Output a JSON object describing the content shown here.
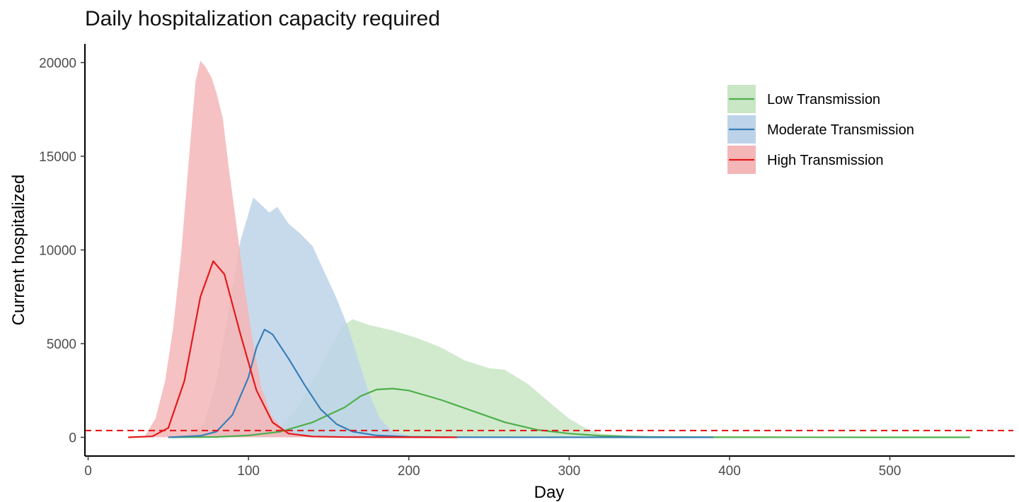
{
  "chart_data": {
    "type": "area",
    "title": "Daily hospitalization capacity required",
    "xlabel": "Day",
    "ylabel": "Current hospitalized",
    "xlim": [
      -2,
      577
    ],
    "ylim": [
      -1000,
      21000
    ],
    "x_ticks": [
      0,
      100,
      200,
      300,
      400,
      500
    ],
    "y_ticks": [
      0,
      5000,
      10000,
      15000,
      20000
    ],
    "grid": false,
    "legend_position": "top-right",
    "reference_line": {
      "y": 360,
      "style": "dashed",
      "color": "#e41a1c"
    },
    "series": [
      {
        "name": "Low Transmission",
        "color": "#4daf4a",
        "fill": "#c9e6c5",
        "line": [
          [
            52,
            0
          ],
          [
            80,
            20
          ],
          [
            100,
            100
          ],
          [
            120,
            300
          ],
          [
            140,
            800
          ],
          [
            160,
            1600
          ],
          [
            170,
            2200
          ],
          [
            180,
            2550
          ],
          [
            190,
            2600
          ],
          [
            200,
            2500
          ],
          [
            220,
            2000
          ],
          [
            240,
            1400
          ],
          [
            260,
            800
          ],
          [
            280,
            400
          ],
          [
            300,
            200
          ],
          [
            320,
            80
          ],
          [
            350,
            20
          ],
          [
            400,
            5
          ],
          [
            550,
            0
          ]
        ],
        "band_upper": [
          [
            100,
            0
          ],
          [
            110,
            200
          ],
          [
            120,
            600
          ],
          [
            130,
            1500
          ],
          [
            140,
            3000
          ],
          [
            150,
            4600
          ],
          [
            158,
            5900
          ],
          [
            165,
            6300
          ],
          [
            175,
            6000
          ],
          [
            190,
            5700
          ],
          [
            205,
            5300
          ],
          [
            220,
            4800
          ],
          [
            235,
            4100
          ],
          [
            250,
            3700
          ],
          [
            260,
            3600
          ],
          [
            275,
            2800
          ],
          [
            290,
            1700
          ],
          [
            300,
            1000
          ],
          [
            310,
            500
          ],
          [
            320,
            200
          ],
          [
            340,
            50
          ],
          [
            360,
            10
          ],
          [
            390,
            0
          ]
        ]
      },
      {
        "name": "Moderate Transmission",
        "color": "#377eb8",
        "fill": "#bdd3e9",
        "line": [
          [
            50,
            0
          ],
          [
            70,
            80
          ],
          [
            80,
            300
          ],
          [
            90,
            1200
          ],
          [
            100,
            3200
          ],
          [
            105,
            4800
          ],
          [
            110,
            5750
          ],
          [
            115,
            5500
          ],
          [
            125,
            4200
          ],
          [
            135,
            2800
          ],
          [
            145,
            1500
          ],
          [
            155,
            700
          ],
          [
            165,
            300
          ],
          [
            180,
            100
          ],
          [
            200,
            30
          ],
          [
            230,
            5
          ],
          [
            390,
            0
          ]
        ],
        "band_upper": [
          [
            52,
            0
          ],
          [
            62,
            150
          ],
          [
            72,
            700
          ],
          [
            80,
            3000
          ],
          [
            88,
            7000
          ],
          [
            95,
            10500
          ],
          [
            103,
            12800
          ],
          [
            108,
            12400
          ],
          [
            113,
            12000
          ],
          [
            118,
            12300
          ],
          [
            125,
            11400
          ],
          [
            132,
            10900
          ],
          [
            140,
            10200
          ],
          [
            148,
            8700
          ],
          [
            155,
            7400
          ],
          [
            162,
            5900
          ],
          [
            168,
            4300
          ],
          [
            175,
            2400
          ],
          [
            182,
            1000
          ],
          [
            190,
            300
          ],
          [
            200,
            80
          ],
          [
            215,
            10
          ],
          [
            240,
            0
          ]
        ]
      },
      {
        "name": "High Transmission",
        "color": "#e41a1c",
        "fill": "#f4b6b7",
        "line": [
          [
            25,
            0
          ],
          [
            40,
            50
          ],
          [
            50,
            500
          ],
          [
            60,
            3000
          ],
          [
            70,
            7500
          ],
          [
            78,
            9400
          ],
          [
            85,
            8700
          ],
          [
            95,
            5500
          ],
          [
            105,
            2500
          ],
          [
            115,
            800
          ],
          [
            125,
            200
          ],
          [
            140,
            40
          ],
          [
            160,
            10
          ],
          [
            230,
            0
          ]
        ],
        "band_upper": [
          [
            35,
            0
          ],
          [
            42,
            1000
          ],
          [
            48,
            3000
          ],
          [
            53,
            5800
          ],
          [
            58,
            9800
          ],
          [
            63,
            15000
          ],
          [
            67,
            19000
          ],
          [
            70,
            20100
          ],
          [
            73,
            19800
          ],
          [
            77,
            19200
          ],
          [
            80,
            18400
          ],
          [
            84,
            17000
          ],
          [
            88,
            14200
          ],
          [
            93,
            11000
          ],
          [
            98,
            7800
          ],
          [
            103,
            5000
          ],
          [
            108,
            2700
          ],
          [
            114,
            1200
          ],
          [
            122,
            400
          ],
          [
            132,
            100
          ],
          [
            150,
            0
          ]
        ]
      }
    ]
  }
}
